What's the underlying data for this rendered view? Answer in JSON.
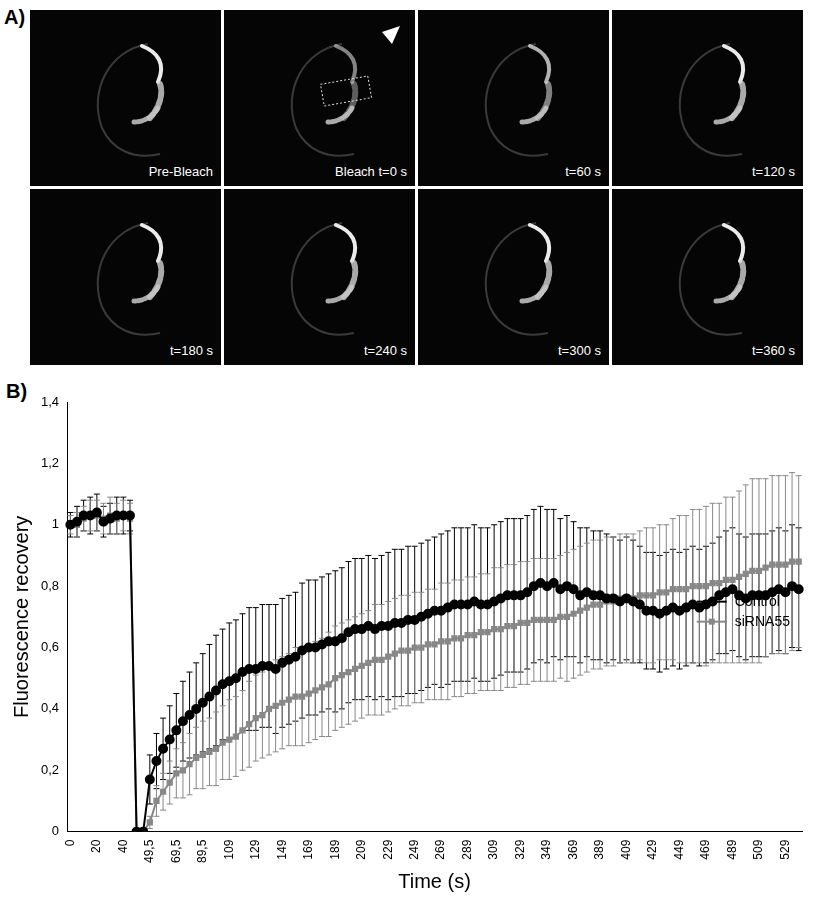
{
  "figure": {
    "panels": [
      {
        "label": "A)",
        "images": [
          {
            "caption": "Pre-Bleach"
          },
          {
            "caption": "Bleach t=0 s"
          },
          {
            "caption": "t=60 s"
          },
          {
            "caption": "t=120 s"
          },
          {
            "caption": "t=180 s"
          },
          {
            "caption": "t=240 s"
          },
          {
            "caption": "t=300 s"
          },
          {
            "caption": "t=360 s"
          }
        ]
      },
      {
        "label": "B)"
      }
    ]
  },
  "chart_data": {
    "type": "line",
    "x_label": "Time (s)",
    "y_label": "Fluorescence recovery",
    "categories": [
      "0",
      null,
      null,
      null,
      "20",
      null,
      null,
      null,
      "40",
      null,
      null,
      null,
      "49,5",
      null,
      null,
      null,
      "69,5",
      null,
      null,
      null,
      "89,5",
      null,
      null,
      null,
      "109",
      null,
      null,
      null,
      "129",
      null,
      null,
      null,
      "149",
      null,
      null,
      null,
      "169",
      null,
      null,
      null,
      "189",
      null,
      null,
      null,
      "209",
      null,
      null,
      null,
      "229",
      null,
      null,
      null,
      "249",
      null,
      null,
      null,
      "269",
      null,
      null,
      null,
      "289",
      null,
      null,
      null,
      "309",
      null,
      null,
      null,
      "329",
      null,
      null,
      null,
      "349",
      null,
      null,
      null,
      "369",
      null,
      null,
      null,
      "389",
      null,
      null,
      null,
      "409",
      null,
      null,
      null,
      "429",
      null,
      null,
      null,
      "449",
      null,
      null,
      null,
      "469",
      null,
      null,
      null,
      "489",
      null,
      null,
      null,
      "509",
      null,
      null,
      null,
      "529",
      null,
      null
    ],
    "series": [
      {
        "name": "Control",
        "color": "#000000",
        "marker": "circle",
        "values": [
          1.0,
          1.01,
          1.03,
          1.03,
          1.04,
          1.01,
          1.02,
          1.03,
          1.03,
          1.03,
          0,
          0,
          0.17,
          0.23,
          0.27,
          0.3,
          0.33,
          0.36,
          0.38,
          0.4,
          0.42,
          0.44,
          0.46,
          0.48,
          0.49,
          0.5,
          0.52,
          0.53,
          0.53,
          0.54,
          0.54,
          0.53,
          0.55,
          0.56,
          0.57,
          0.59,
          0.6,
          0.6,
          0.61,
          0.62,
          0.62,
          0.63,
          0.65,
          0.66,
          0.66,
          0.67,
          0.66,
          0.67,
          0.67,
          0.68,
          0.68,
          0.69,
          0.69,
          0.7,
          0.71,
          0.72,
          0.72,
          0.73,
          0.74,
          0.74,
          0.74,
          0.75,
          0.74,
          0.74,
          0.75,
          0.76,
          0.77,
          0.77,
          0.77,
          0.78,
          0.8,
          0.81,
          0.8,
          0.81,
          0.79,
          0.8,
          0.79,
          0.77,
          0.78,
          0.77,
          0.77,
          0.76,
          0.76,
          0.75,
          0.76,
          0.75,
          0.74,
          0.72,
          0.72,
          0.71,
          0.72,
          0.73,
          0.72,
          0.73,
          0.74,
          0.73,
          0.74,
          0.75,
          0.77,
          0.78,
          0.79,
          0.77,
          0.76,
          0.77,
          0.77,
          0.77,
          0.78,
          0.79,
          0.78,
          0.8,
          0.79
        ],
        "errors": [
          0.04,
          0.05,
          0.05,
          0.06,
          0.06,
          0.05,
          0.05,
          0.06,
          0.06,
          0.05,
          0,
          0,
          0.08,
          0.09,
          0.1,
          0.11,
          0.12,
          0.13,
          0.14,
          0.15,
          0.16,
          0.17,
          0.18,
          0.18,
          0.19,
          0.19,
          0.19,
          0.2,
          0.2,
          0.2,
          0.2,
          0.21,
          0.21,
          0.21,
          0.21,
          0.22,
          0.22,
          0.22,
          0.22,
          0.22,
          0.23,
          0.23,
          0.23,
          0.23,
          0.23,
          0.23,
          0.23,
          0.23,
          0.24,
          0.24,
          0.24,
          0.24,
          0.24,
          0.24,
          0.24,
          0.24,
          0.25,
          0.25,
          0.25,
          0.25,
          0.25,
          0.25,
          0.25,
          0.25,
          0.25,
          0.25,
          0.25,
          0.25,
          0.25,
          0.25,
          0.25,
          0.25,
          0.25,
          0.24,
          0.23,
          0.23,
          0.22,
          0.22,
          0.21,
          0.21,
          0.21,
          0.21,
          0.2,
          0.2,
          0.2,
          0.2,
          0.19,
          0.19,
          0.19,
          0.19,
          0.19,
          0.19,
          0.19,
          0.19,
          0.19,
          0.19,
          0.19,
          0.19,
          0.19,
          0.2,
          0.2,
          0.2,
          0.2,
          0.2,
          0.2,
          0.2,
          0.2,
          0.2,
          0.2,
          0.2,
          0.2
        ]
      },
      {
        "name": "siRNA55",
        "color": "#888888",
        "marker": "square",
        "values": [
          1.0,
          1.0,
          1.02,
          1.03,
          1.03,
          1.02,
          1.03,
          1.02,
          1.03,
          1.02,
          0,
          0,
          0.03,
          0.1,
          0.13,
          0.16,
          0.19,
          0.2,
          0.22,
          0.24,
          0.25,
          0.26,
          0.27,
          0.29,
          0.3,
          0.31,
          0.33,
          0.35,
          0.37,
          0.38,
          0.4,
          0.41,
          0.42,
          0.43,
          0.44,
          0.44,
          0.45,
          0.46,
          0.47,
          0.48,
          0.5,
          0.51,
          0.52,
          0.53,
          0.54,
          0.55,
          0.56,
          0.56,
          0.57,
          0.58,
          0.59,
          0.59,
          0.6,
          0.6,
          0.61,
          0.61,
          0.62,
          0.62,
          0.63,
          0.63,
          0.64,
          0.64,
          0.65,
          0.65,
          0.66,
          0.66,
          0.67,
          0.67,
          0.68,
          0.68,
          0.69,
          0.69,
          0.69,
          0.69,
          0.7,
          0.7,
          0.71,
          0.72,
          0.73,
          0.74,
          0.74,
          0.75,
          0.75,
          0.76,
          0.76,
          0.76,
          0.77,
          0.77,
          0.77,
          0.78,
          0.78,
          0.79,
          0.79,
          0.79,
          0.8,
          0.8,
          0.8,
          0.81,
          0.81,
          0.82,
          0.82,
          0.83,
          0.84,
          0.85,
          0.85,
          0.86,
          0.87,
          0.87,
          0.87,
          0.88,
          0.88
        ],
        "errors": [
          0.03,
          0.04,
          0.04,
          0.05,
          0.05,
          0.05,
          0.06,
          0.05,
          0.05,
          0.05,
          0,
          0,
          0.02,
          0.05,
          0.06,
          0.07,
          0.08,
          0.09,
          0.1,
          0.1,
          0.11,
          0.11,
          0.12,
          0.12,
          0.13,
          0.13,
          0.13,
          0.14,
          0.14,
          0.14,
          0.15,
          0.15,
          0.15,
          0.15,
          0.16,
          0.16,
          0.16,
          0.16,
          0.16,
          0.17,
          0.17,
          0.17,
          0.17,
          0.17,
          0.17,
          0.17,
          0.18,
          0.18,
          0.18,
          0.18,
          0.18,
          0.18,
          0.18,
          0.18,
          0.18,
          0.18,
          0.19,
          0.19,
          0.19,
          0.19,
          0.19,
          0.19,
          0.19,
          0.19,
          0.2,
          0.2,
          0.2,
          0.2,
          0.2,
          0.2,
          0.2,
          0.2,
          0.2,
          0.2,
          0.2,
          0.21,
          0.21,
          0.21,
          0.21,
          0.21,
          0.21,
          0.21,
          0.21,
          0.21,
          0.21,
          0.21,
          0.21,
          0.22,
          0.22,
          0.22,
          0.22,
          0.23,
          0.24,
          0.24,
          0.25,
          0.25,
          0.26,
          0.26,
          0.26,
          0.27,
          0.27,
          0.28,
          0.29,
          0.3,
          0.3,
          0.29,
          0.29,
          0.29,
          0.29,
          0.29,
          0.28
        ]
      }
    ],
    "ylim": [
      0,
      1.4
    ],
    "yticks": [
      0,
      {
        "value": 0.2,
        "label": "0,2"
      },
      {
        "value": 0.4,
        "label": "0,4"
      },
      {
        "value": 0.6,
        "label": "0,6"
      },
      {
        "value": 0.8,
        "label": "0,8"
      },
      1,
      {
        "value": 1.2,
        "label": "1,2"
      },
      {
        "value": 1.4,
        "label": "1,4"
      }
    ],
    "grid": false,
    "legend": "lower right"
  }
}
